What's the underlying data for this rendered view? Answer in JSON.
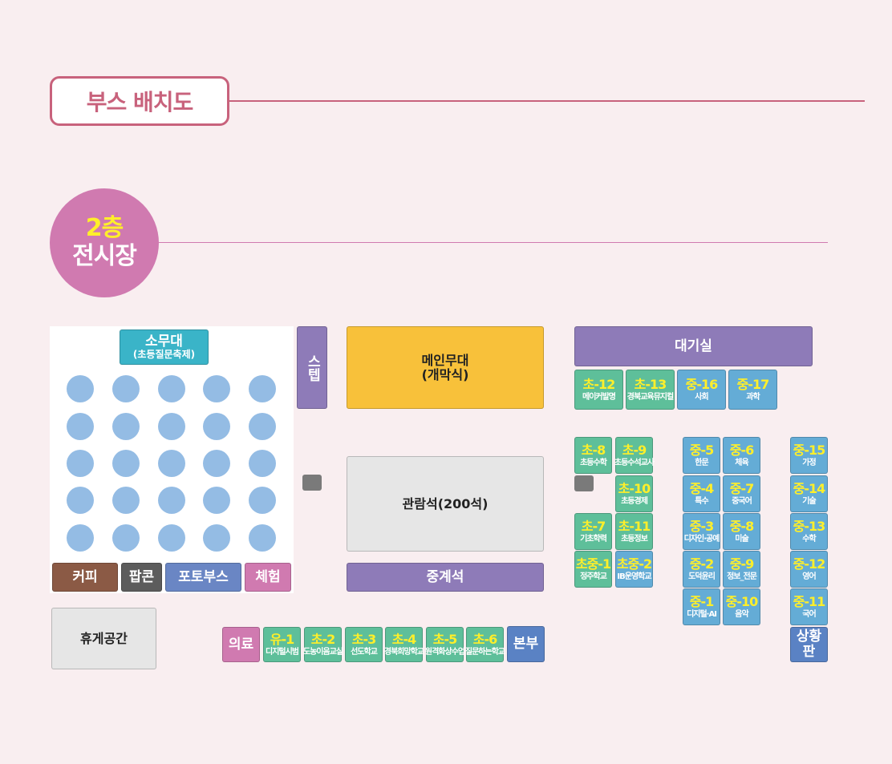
{
  "header": {
    "title": "부스 배치도",
    "floor_number": "2층",
    "floor_name": "전시장"
  },
  "colors": {
    "elementary": "#5ebf9a",
    "middle": "#64acd6",
    "purple": "#8e7bb8",
    "stage": "#f8c13a",
    "pink": "#d07ab0",
    "status": "#5a82c4",
    "gray": "#e6e6e6",
    "teal": "#3ab4c8",
    "accent": "#c8627c"
  },
  "areas": {
    "small_stage": "소무대",
    "small_stage_sub": "(초등질문축제)",
    "staff": "스텝",
    "main_stage": "메인무대",
    "main_stage_sub": "(개막식)",
    "seating": "관람석(200석)",
    "broadcast": "중계석",
    "waiting_room": "대기실",
    "lounge": "휴게공간",
    "coffee": "커피",
    "popcorn": "팝콘",
    "photo_booth": "포토부스",
    "experience": "체험",
    "medical": "의료",
    "headquarters": "본부",
    "status_board": "상황판"
  },
  "booths": [
    {
      "code": "초-12",
      "name": "메이커발명",
      "type": "elementary"
    },
    {
      "code": "초-13",
      "name": "경북교육뮤지컬",
      "type": "elementary"
    },
    {
      "code": "중-16",
      "name": "사회",
      "type": "middle"
    },
    {
      "code": "중-17",
      "name": "과학",
      "type": "middle"
    },
    {
      "code": "초-8",
      "name": "초등수학",
      "type": "elementary"
    },
    {
      "code": "초-9",
      "name": "초등수석교사",
      "type": "elementary"
    },
    {
      "code": "초-10",
      "name": "초등경제",
      "type": "elementary"
    },
    {
      "code": "초-7",
      "name": "기초학력",
      "type": "elementary"
    },
    {
      "code": "초-11",
      "name": "초등정보",
      "type": "elementary"
    },
    {
      "code": "초중-1",
      "name": "정주학교",
      "type": "elementary"
    },
    {
      "code": "초중-2",
      "name": "IB운영학교",
      "type": "middle"
    },
    {
      "code": "중-5",
      "name": "한문",
      "type": "middle"
    },
    {
      "code": "중-6",
      "name": "체육",
      "type": "middle"
    },
    {
      "code": "중-4",
      "name": "특수",
      "type": "middle"
    },
    {
      "code": "중-7",
      "name": "중국어",
      "type": "middle"
    },
    {
      "code": "중-3",
      "name": "디자인·공예",
      "type": "middle"
    },
    {
      "code": "중-8",
      "name": "미술",
      "type": "middle"
    },
    {
      "code": "중-2",
      "name": "도덕윤리",
      "type": "middle"
    },
    {
      "code": "중-9",
      "name": "정보_전문",
      "type": "middle"
    },
    {
      "code": "중-1",
      "name": "디지털·AI",
      "type": "middle"
    },
    {
      "code": "중-10",
      "name": "음악",
      "type": "middle"
    },
    {
      "code": "중-15",
      "name": "가정",
      "type": "middle"
    },
    {
      "code": "중-14",
      "name": "기술",
      "type": "middle"
    },
    {
      "code": "중-13",
      "name": "수학",
      "type": "middle"
    },
    {
      "code": "중-12",
      "name": "영어",
      "type": "middle"
    },
    {
      "code": "중-11",
      "name": "국어",
      "type": "middle"
    },
    {
      "code": "유-1",
      "name": "디지털시범",
      "type": "elementary"
    },
    {
      "code": "초-2",
      "name": "도농이음교실",
      "type": "elementary"
    },
    {
      "code": "초-3",
      "name": "선도학교",
      "type": "elementary"
    },
    {
      "code": "초-4",
      "name": "경북희망학교",
      "type": "elementary"
    },
    {
      "code": "초-5",
      "name": "원격화상수업",
      "type": "elementary"
    },
    {
      "code": "초-6",
      "name": "질문하는학교",
      "type": "elementary"
    }
  ]
}
